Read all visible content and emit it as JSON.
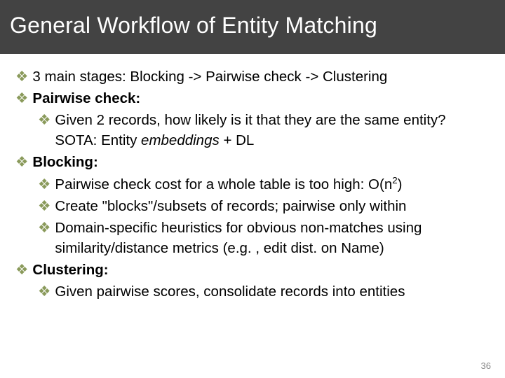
{
  "title": "General Workflow of Entity Matching",
  "bullet_colors": {
    "glyph": "❖",
    "color": "#8a9a5b"
  },
  "text_color": "#000000",
  "title_bg": "#434343",
  "title_color": "#ffffff",
  "font_family": "Arial",
  "title_fontsize": 32,
  "body_fontsize": 20.5,
  "lines": {
    "l1": "3 main stages: Blocking -> Pairwise check -> Clustering",
    "l2_strong": "Pairwise check:",
    "l3_a": "Given 2 records, how likely is it that they are the same entity? SOTA: Entity ",
    "l3_em": "embeddings",
    "l3_b": " + DL",
    "l4_strong": "Blocking:",
    "l5_a": "Pairwise check cost for a whole table is too high: O(n",
    "l5_sup": "2",
    "l5_b": ")",
    "l6": "Create \"blocks\"/subsets of records; pairwise only within",
    "l7": "Domain-specific heuristics for obvious non-matches using similarity/distance metrics (e.g. , edit dist. on Name)",
    "l8_strong": "Clustering:",
    "l9": "Given pairwise scores, consolidate records into entities"
  },
  "page_number": "36"
}
